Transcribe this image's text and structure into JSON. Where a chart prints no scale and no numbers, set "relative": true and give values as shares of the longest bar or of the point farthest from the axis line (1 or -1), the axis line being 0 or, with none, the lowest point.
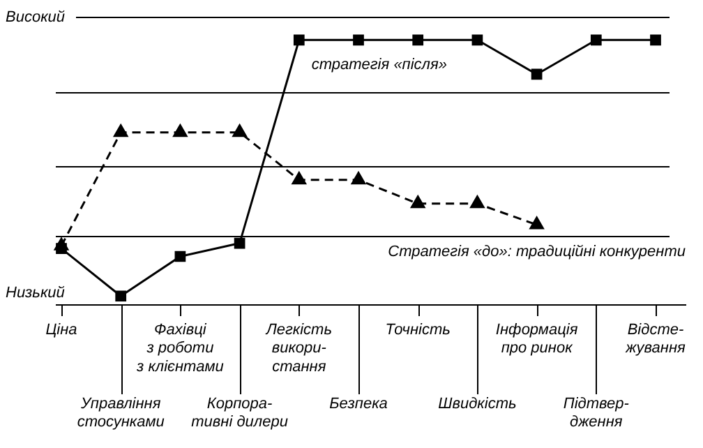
{
  "chart_data": {
    "type": "line",
    "relative": true,
    "legend": false,
    "ref_lines": [
      {
        "axis": "y",
        "value": 0.26
      },
      {
        "axis": "y",
        "value": 0.52
      },
      {
        "axis": "y",
        "value": 0.8
      },
      {
        "axis": "y",
        "value": 1.088,
        "label": "Високий"
      }
    ],
    "categories": [
      "Ціна",
      "Управління\nстосунками",
      "Фахівці\nз роботи\nз клієнтами",
      "Корпора-\nтивні дилери",
      "Легкість\nвикори-\nстання",
      "Безпека",
      "Точність",
      "Швидкість",
      "Інформація\nпро ринок",
      "Підтвер-\nдження",
      "Відсте-\nжування"
    ],
    "annotations": [
      "Низький"
    ],
    "series": [
      {
        "name": "стратегія «після»",
        "color": "#000000",
        "marker": "square",
        "line_style": "solid",
        "values": [
          0.21,
          0.03,
          0.18,
          0.23,
          1,
          1,
          1,
          1,
          0.87,
          1,
          1
        ]
      },
      {
        "name": "Стратегія «до»: традиційні конкуренти",
        "color": "#000000",
        "marker": "triangle",
        "line_style": "dashed",
        "values": [
          0.22,
          0.65,
          0.65,
          0.65,
          0.47,
          0.47,
          0.38,
          0.38,
          0.3,
          null,
          null
        ]
      }
    ]
  }
}
